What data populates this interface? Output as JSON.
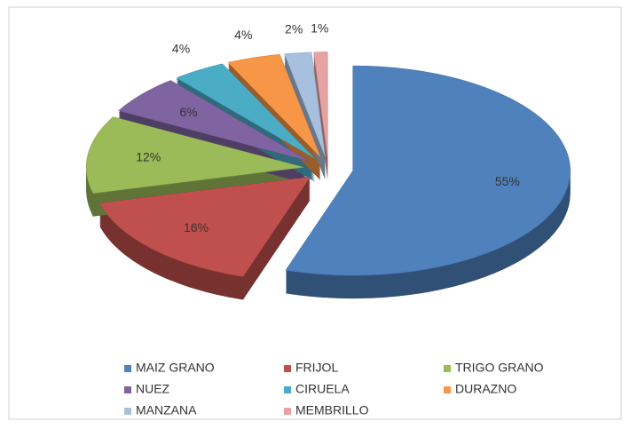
{
  "chart_data": {
    "type": "pie3d",
    "categories": [
      "MAIZ GRANO",
      "FRIJOL",
      "TRIGO GRANO",
      "NUEZ",
      "CIRUELA",
      "DURAZNO",
      "MANZANA",
      "MEMBRILLO"
    ],
    "values": [
      55,
      16,
      12,
      6,
      4,
      4,
      2,
      1
    ],
    "value_labels": [
      "55%",
      "16%",
      "12%",
      "6%",
      "4%",
      "4%",
      "2%",
      "1%"
    ],
    "colors": [
      "#4f81bd",
      "#c0504d",
      "#9bbb59",
      "#8064a2",
      "#4bacc6",
      "#f79646",
      "#a7c0de",
      "#e6a3a3"
    ],
    "legend": "bottom"
  }
}
